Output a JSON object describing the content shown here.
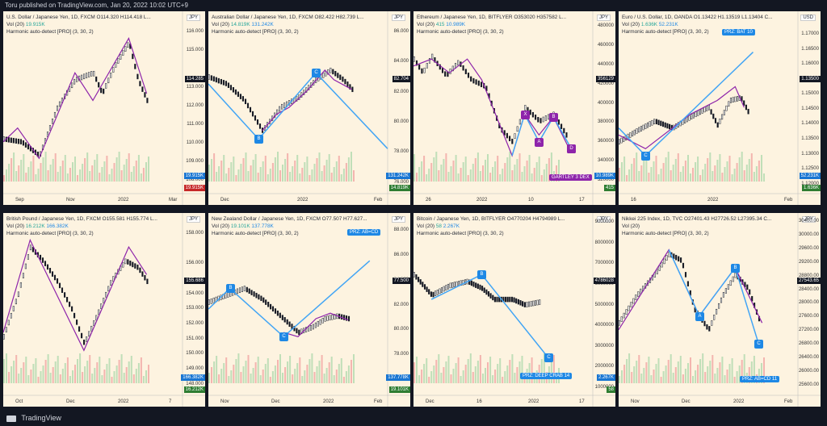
{
  "topbar": "Toru published on TradingView.com, Jan 20, 2022 10:02 UTC+9",
  "footer": "TradingView",
  "common": {
    "vol_label": "Vol (20)",
    "harmonic": "Harmonic auto-detect [PRO] (3, 30, 2)"
  },
  "chart_data": [
    {
      "type": "line",
      "symbol": "U.S. Dollar / Japanese Yen, 1D, FXCM",
      "ohlc": "O114.320 H114.418 L...",
      "vol": "19.915K",
      "vol2": "",
      "currency": "JPY",
      "y_ticks": [
        "116.000",
        "115.000",
        "113.000",
        "112.000",
        "111.000",
        "110.000",
        "109.000",
        "108.000"
      ],
      "ylim": [
        107.5,
        116.8
      ],
      "x_ticks": [
        "Sep",
        "Nov",
        "2022",
        "Mar"
      ],
      "price_tag": "114.285",
      "vol_tag": "19.915K",
      "vol_tag2": "",
      "patterns": [],
      "boxes": []
    },
    {
      "type": "line",
      "symbol": "Australian Dollar / Japanese Yen, 1D, FXCM",
      "ohlc": "O82.422 H82.739 L...",
      "vol": "14.819K",
      "vol2": "131.242K",
      "currency": "JPY",
      "y_ticks": [
        "86.000",
        "84.000",
        "82.000",
        "80.000",
        "78.000",
        "76.000"
      ],
      "ylim": [
        75.5,
        87
      ],
      "x_ticks": [
        "Dec",
        "2022",
        "Feb"
      ],
      "price_tag": "82.704",
      "vol_tag": "131.242K",
      "vol_tag2": "14.819K",
      "patterns": [
        "B",
        "C"
      ],
      "boxes": []
    },
    {
      "type": "line",
      "symbol": "Ethereum / Japanese Yen, 1D, BITFLYER",
      "ohlc": "O353020 H357582 L...",
      "vol": "415",
      "vol2": "10.989K",
      "currency": "JPY",
      "y_ticks": [
        "480000",
        "460000",
        "440000",
        "420000",
        "400000",
        "380000",
        "360000",
        "340000",
        "320000"
      ],
      "ylim": [
        310000,
        490000
      ],
      "x_ticks": [
        "26",
        "2022",
        "10",
        "17"
      ],
      "price_tag": "356129",
      "vol_tag": "10.989K",
      "vol_tag2": "415",
      "patterns": [
        "X",
        "A",
        "B",
        "C",
        "D"
      ],
      "boxes": [
        "GARTLEY 3 DEX"
      ]
    },
    {
      "type": "line",
      "symbol": "Euro / U.S. Dollar, 1D, OANDA",
      "ohlc": "O1.13422 H1.13519 L1.13404 C...",
      "vol": "1.636K",
      "vol2": "52.231K",
      "currency": "USD",
      "y_ticks": [
        "1.17000",
        "1.16500",
        "1.16000",
        "1.15500",
        "1.15000",
        "1.14500",
        "1.14000",
        "1.13500",
        "1.13000",
        "1.12500",
        "1.12000"
      ],
      "ylim": [
        1.118,
        1.176
      ],
      "x_ticks": [
        "16",
        "2022",
        "Feb"
      ],
      "price_tag": "1.13500",
      "vol_tag": "52.231K",
      "vol_tag2": "1.636K",
      "patterns": [
        "C"
      ],
      "boxes": [
        "PRZ: BAT 10"
      ]
    },
    {
      "type": "line",
      "symbol": "British Pound / Japanese Yen, 1D, FXCM",
      "ohlc": "O155.581 H155.774 L...",
      "vol": "16.212K",
      "vol2": "166.382K",
      "currency": "JPY",
      "y_ticks": [
        "158.000",
        "156.000",
        "154.000",
        "153.000",
        "152.000",
        "151.000",
        "150.000",
        "149.000",
        "148.000"
      ],
      "ylim": [
        147.5,
        159
      ],
      "x_ticks": [
        "Oct",
        "Dec",
        "2022",
        "7"
      ],
      "price_tag": "155.686",
      "vol_tag": "166.382K",
      "vol_tag2": "16.212K",
      "patterns": [],
      "boxes": []
    },
    {
      "type": "line",
      "symbol": "New Zealand Dollar / Japanese Yen, 1D, FXCM",
      "ohlc": "O77.507 H77.627...",
      "vol": "19.101K",
      "vol2": "137.778K",
      "currency": "JPY",
      "y_ticks": [
        "88.000",
        "86.000",
        "84.000",
        "82.000",
        "80.000",
        "78.000",
        "76.000"
      ],
      "ylim": [
        75,
        89
      ],
      "x_ticks": [
        "Nov",
        "Dec",
        "2022",
        "Feb"
      ],
      "price_tag": "77.500",
      "vol_tag": "137.778K",
      "vol_tag2": "19.101K",
      "patterns": [
        "B",
        "C"
      ],
      "boxes": [
        "PRZ: AB=CD"
      ]
    },
    {
      "type": "line",
      "symbol": "Bitcoin / Japanese Yen, 1D, BITFLYER",
      "ohlc": "O4770204 H4794989 L...",
      "vol": "58",
      "vol2": "2.267K",
      "currency": "JPY",
      "y_ticks": [
        "9000000",
        "8000000",
        "7000000",
        "6000000",
        "5000000",
        "4000000",
        "3000000",
        "2000000",
        "1000000"
      ],
      "ylim": [
        800000,
        9200000
      ],
      "x_ticks": [
        "Dec",
        "16",
        "2022",
        "17"
      ],
      "price_tag": "4786028",
      "vol_tag": "2.267K",
      "vol_tag2": "58",
      "patterns": [
        "B",
        "C"
      ],
      "boxes": [
        "PRZ: DEEP CRAB 14"
      ]
    },
    {
      "type": "line",
      "symbol": "Nikkei 225 Index, 1D, TVC",
      "ohlc": "O27401.43 H27726.52 L27395.34 C...",
      "vol": "",
      "vol2": "",
      "currency": "JPY",
      "y_ticks": [
        "30400.00",
        "30000.00",
        "29600.00",
        "29200.00",
        "28800.00",
        "28400.00",
        "28000.00",
        "27600.00",
        "27200.00",
        "26800.00",
        "26400.00",
        "26000.00",
        "25600.00"
      ],
      "ylim": [
        25400,
        30500
      ],
      "x_ticks": [
        "Nov",
        "Dec",
        "2022",
        "Feb"
      ],
      "price_tag": "27543.65",
      "vol_tag": "",
      "vol_tag2": "",
      "patterns": [
        "A",
        "B",
        "C"
      ],
      "boxes": [
        "PRZ: AB=CD 11"
      ]
    }
  ]
}
